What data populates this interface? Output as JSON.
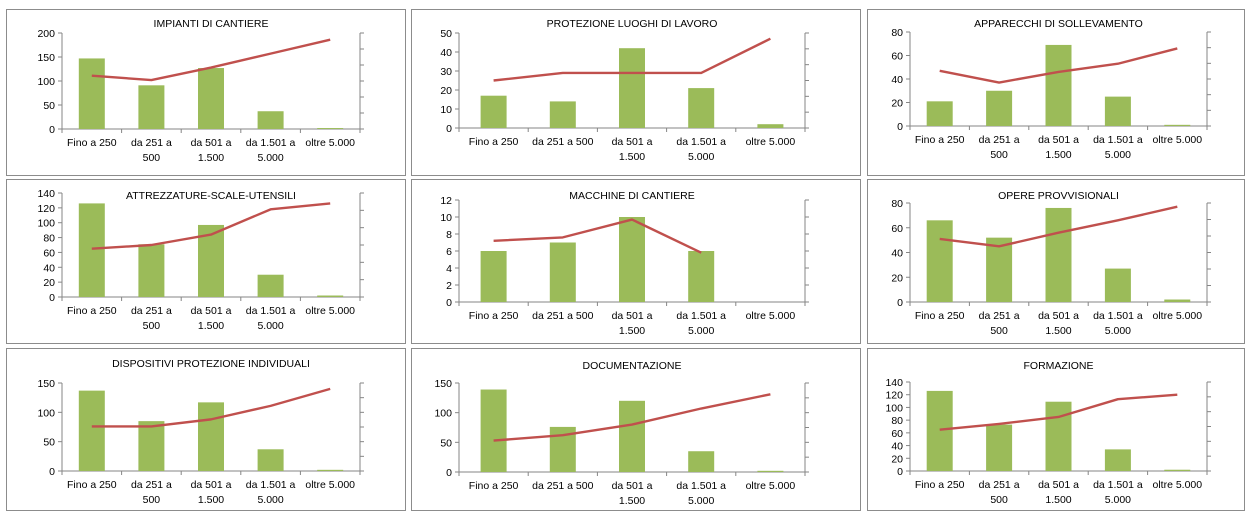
{
  "chart_data": [
    {
      "type": "bar",
      "title": "IMPIANTI DI CANTIERE",
      "categories": [
        [
          "Fino a 250"
        ],
        [
          "da 251 a",
          "500"
        ],
        [
          "da 501 a",
          "1.500"
        ],
        [
          "da 1.501 a",
          "5.000"
        ],
        [
          "oltre 5.000"
        ]
      ],
      "values": [
        147,
        91,
        127,
        37,
        2
      ],
      "line": [
        111,
        102,
        128,
        157,
        186
      ],
      "ylim": [
        0,
        200
      ],
      "yticks": [
        0,
        50,
        100,
        150,
        200
      ],
      "bar_color": "#9bbb59",
      "line_color": "#c0504d"
    },
    {
      "type": "bar",
      "title": "PROTEZIONE LUOGHI DI LAVORO",
      "categories": [
        [
          "Fino a 250"
        ],
        [
          "da 251 a 500"
        ],
        [
          "da 501 a",
          "1.500"
        ],
        [
          "da 1.501 a",
          "5.000"
        ],
        [
          "oltre 5.000"
        ]
      ],
      "values": [
        17,
        14,
        42,
        21,
        2
      ],
      "line": [
        25,
        29,
        29,
        29,
        47
      ],
      "ylim": [
        0,
        50
      ],
      "yticks": [
        0,
        10,
        20,
        30,
        40,
        50
      ],
      "bar_color": "#9bbb59",
      "line_color": "#c0504d"
    },
    {
      "type": "bar",
      "title": "APPARECCHI DI SOLLEVAMENTO",
      "categories": [
        [
          "Fino a 250"
        ],
        [
          "da 251 a",
          "500"
        ],
        [
          "da 501 a",
          "1.500"
        ],
        [
          "da 1.501 a",
          "5.000"
        ],
        [
          "oltre 5.000"
        ]
      ],
      "values": [
        21,
        30,
        69,
        25,
        1
      ],
      "line": [
        47,
        37,
        46,
        53,
        66
      ],
      "ylim": [
        0,
        80
      ],
      "yticks": [
        0,
        20,
        40,
        60,
        80
      ],
      "bar_color": "#9bbb59",
      "line_color": "#c0504d"
    },
    {
      "type": "bar",
      "title": "ATTREZZATURE-SCALE-UTENSILI",
      "categories": [
        [
          "Fino a 250"
        ],
        [
          "da 251 a",
          "500"
        ],
        [
          "da 501 a",
          "1.500"
        ],
        [
          "da 1.501 a",
          "5.000"
        ],
        [
          "oltre 5.000"
        ]
      ],
      "values": [
        126,
        71,
        97,
        30,
        2
      ],
      "line": [
        65,
        70,
        84,
        118,
        126
      ],
      "ylim": [
        0,
        140
      ],
      "yticks": [
        0,
        20,
        40,
        60,
        80,
        100,
        120,
        140
      ],
      "bar_color": "#9bbb59",
      "line_color": "#c0504d"
    },
    {
      "type": "bar",
      "title": "MACCHINE DI CANTIERE",
      "categories": [
        [
          "Fino a 250"
        ],
        [
          "da 251 a 500"
        ],
        [
          "da 501 a",
          "1.500"
        ],
        [
          "da 1.501 a",
          "5.000"
        ],
        [
          "oltre 5.000"
        ]
      ],
      "values": [
        6,
        7,
        10,
        6,
        0
      ],
      "line": [
        7.2,
        7.6,
        9.7,
        5.8,
        null
      ],
      "ylim": [
        0,
        12
      ],
      "yticks": [
        0,
        2,
        4,
        6,
        8,
        10,
        12
      ],
      "bar_color": "#9bbb59",
      "line_color": "#c0504d"
    },
    {
      "type": "bar",
      "title": "OPERE PROVVISIONALI",
      "categories": [
        [
          "Fino a 250"
        ],
        [
          "da 251 a",
          "500"
        ],
        [
          "da 501 a",
          "1.500"
        ],
        [
          "da 1.501 a",
          "5.000"
        ],
        [
          "oltre 5.000"
        ]
      ],
      "values": [
        66,
        52,
        76,
        27,
        2
      ],
      "line": [
        51,
        45,
        56,
        66,
        77
      ],
      "ylim": [
        0,
        80
      ],
      "yticks": [
        0,
        20,
        40,
        60,
        80
      ],
      "bar_color": "#9bbb59",
      "line_color": "#c0504d"
    },
    {
      "type": "bar",
      "title": "DISPOSITIVI PROTEZIONE INDIVIDUALI",
      "categories": [
        [
          "Fino a 250"
        ],
        [
          "da 251 a",
          "500"
        ],
        [
          "da 501 a",
          "1.500"
        ],
        [
          "da 1.501 a",
          "5.000"
        ],
        [
          "oltre 5.000"
        ]
      ],
      "values": [
        137,
        85,
        117,
        37,
        2
      ],
      "line": [
        76,
        76,
        88,
        111,
        140
      ],
      "ylim": [
        0,
        150
      ],
      "yticks": [
        0,
        50,
        100,
        150
      ],
      "bar_color": "#9bbb59",
      "line_color": "#c0504d"
    },
    {
      "type": "bar",
      "title": "DOCUMENTAZIONE",
      "categories": [
        [
          "Fino a 250"
        ],
        [
          "da 251 a 500"
        ],
        [
          "da 501 a",
          "1.500"
        ],
        [
          "da 1.501 a",
          "5.000"
        ],
        [
          "oltre 5.000"
        ]
      ],
      "values": [
        139,
        76,
        120,
        35,
        2
      ],
      "line": [
        53,
        62,
        80,
        107,
        131
      ],
      "ylim": [
        0,
        150
      ],
      "yticks": [
        0,
        50,
        100,
        150
      ],
      "bar_color": "#9bbb59",
      "line_color": "#c0504d"
    },
    {
      "type": "bar",
      "title": "FORMAZIONE",
      "categories": [
        [
          "Fino a 250"
        ],
        [
          "da 251 a",
          "500"
        ],
        [
          "da 501 a",
          "1.500"
        ],
        [
          "da 1.501 a",
          "5.000"
        ],
        [
          "oltre 5.000"
        ]
      ],
      "values": [
        126,
        73,
        109,
        34,
        2
      ],
      "line": [
        65,
        74,
        85,
        113,
        120
      ],
      "ylim": [
        0,
        140
      ],
      "yticks": [
        0,
        20,
        40,
        60,
        80,
        100,
        120,
        140
      ],
      "bar_color": "#9bbb59",
      "line_color": "#c0504d"
    }
  ]
}
